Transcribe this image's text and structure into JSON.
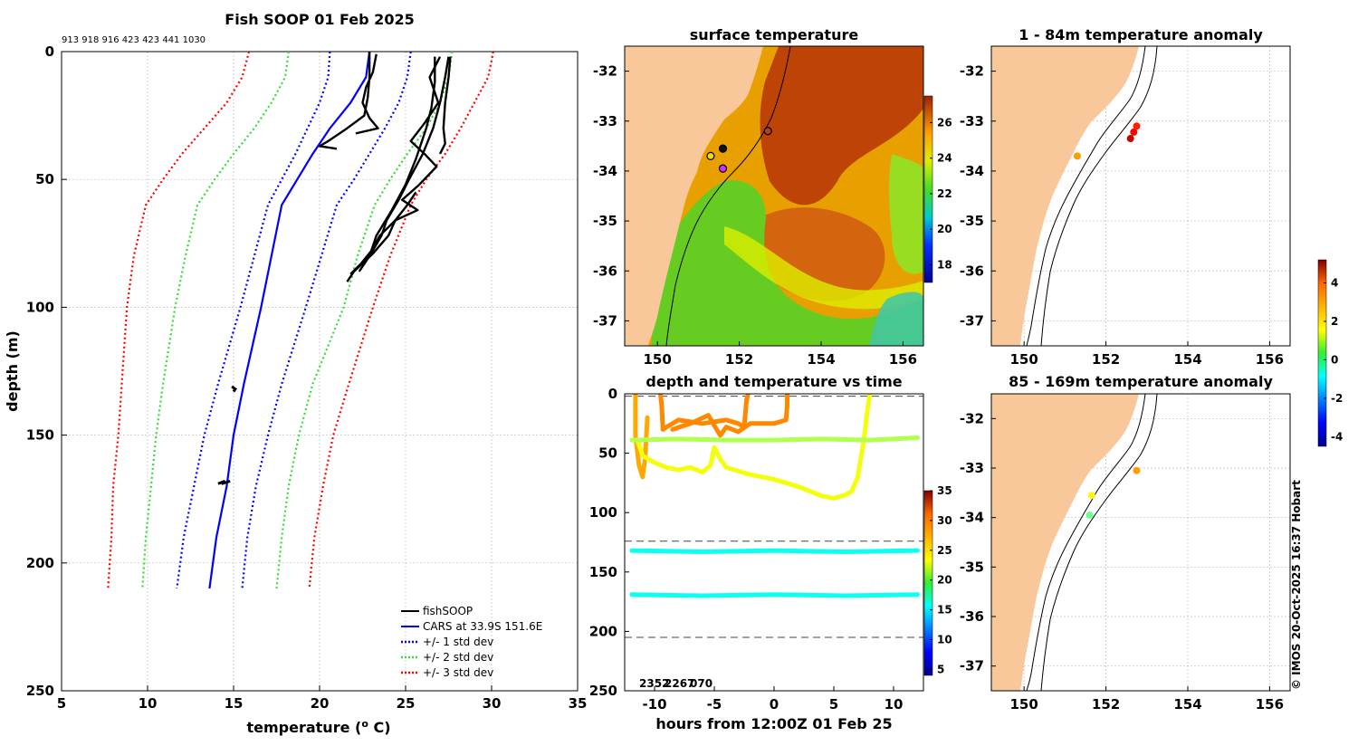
{
  "colors": {
    "land": "#f9c89a",
    "fishSOOP": "#000000",
    "cars": "#0000ff",
    "std1": "#0000ff",
    "std2": "#33dd33",
    "std3": "#ff0000",
    "grid": "#c0c0c0"
  },
  "chart_data": [
    {
      "type": "line",
      "title": "Fish SOOP 01 Feb 2025",
      "subtitle": "913 918 916 423 423 441 1030",
      "xlabel": "temperature (",
      "xlabel_sup": "o",
      "xlabel_unit": " C)",
      "ylabel": "depth (m)",
      "xlim": [
        5,
        35
      ],
      "ylim": [
        250,
        0
      ],
      "xticks": [
        "5",
        "10",
        "15",
        "20",
        "25",
        "30",
        "35"
      ],
      "yticks": [
        "0",
        "50",
        "100",
        "150",
        "200",
        "250"
      ],
      "legend": [
        "fishSOOP",
        "CARS at 33.9S 151.6E",
        "+/- 1 std dev",
        "+/- 2 std dev",
        "+/- 3 std dev"
      ],
      "legend_position": "bottom-right",
      "depth": [
        0,
        10,
        20,
        30,
        40,
        50,
        60,
        80,
        100,
        130,
        150,
        170,
        190,
        210
      ],
      "series": [
        {
          "name": "CARS at 33.9S 151.6E",
          "values": [
            22.9,
            22.7,
            21.8,
            20.6,
            19.6,
            18.7,
            17.8,
            17.2,
            16.6,
            15.6,
            15.0,
            14.6,
            14.0,
            13.6
          ]
        },
        {
          "name": "-1 std dev",
          "values": [
            20.6,
            20.5,
            20.0,
            19.3,
            18.6,
            17.8,
            17.0,
            16.2,
            15.4,
            14.1,
            13.3,
            12.7,
            12.1,
            11.7
          ]
        },
        {
          "name": "+1 std dev",
          "values": [
            25.3,
            25.1,
            24.6,
            23.8,
            22.9,
            22.0,
            21.0,
            20.1,
            19.2,
            17.8,
            17.0,
            16.3,
            15.8,
            15.5
          ]
        },
        {
          "name": "-2 std dev",
          "values": [
            18.2,
            18.0,
            17.2,
            16.2,
            15.0,
            13.9,
            12.9,
            12.2,
            11.6,
            10.9,
            10.5,
            10.2,
            9.9,
            9.7
          ]
        },
        {
          "name": "+2 std dev",
          "values": [
            27.7,
            27.5,
            27.0,
            26.2,
            25.1,
            24.1,
            23.2,
            22.2,
            21.4,
            19.6,
            18.8,
            18.2,
            17.8,
            17.5
          ]
        },
        {
          "name": "-3 std dev",
          "values": [
            15.9,
            15.5,
            14.6,
            13.3,
            12.0,
            10.9,
            9.9,
            9.2,
            8.8,
            8.5,
            8.3,
            8.0,
            7.9,
            7.7
          ]
        },
        {
          "name": "+3 std dev",
          "values": [
            30.1,
            29.8,
            29.0,
            28.2,
            27.3,
            26.2,
            25.3,
            24.1,
            23.1,
            21.7,
            20.8,
            20.2,
            19.7,
            19.4
          ]
        }
      ],
      "fishSOOP_profiles": [
        {
          "temp": [
            22.9,
            22.9,
            22.9,
            22.8,
            22.6,
            21.6,
            20.5,
            20.0,
            21.0
          ],
          "depth": [
            0,
            5,
            10,
            18,
            25,
            30,
            35,
            37,
            38
          ]
        },
        {
          "temp": [
            23.3,
            23.1,
            22.7,
            22.5,
            22.9,
            23.4,
            22.1
          ],
          "depth": [
            1,
            8,
            14,
            20,
            26,
            30,
            32
          ]
        },
        {
          "temp": [
            27.0,
            26.4,
            26.9,
            26.1,
            25.3,
            26.1,
            26.8,
            25.8,
            24.8,
            25.7,
            24.4,
            23.5,
            23.0,
            22.4,
            21.8
          ],
          "depth": [
            2,
            10,
            20,
            28,
            35,
            40,
            45,
            52,
            58,
            62,
            66,
            72,
            78,
            83,
            87
          ]
        },
        {
          "temp": [
            26.7,
            26.7,
            26.5,
            26.2,
            25.6,
            25.0,
            24.2,
            23.3,
            22.9
          ],
          "depth": [
            2,
            12,
            22,
            30,
            42,
            52,
            62,
            72,
            80
          ]
        },
        {
          "temp": [
            27.5,
            27.3,
            27.0,
            26.6,
            26.0,
            25.2,
            24.6,
            23.9,
            23.6,
            22.9,
            22.3
          ],
          "depth": [
            2,
            10,
            20,
            30,
            40,
            50,
            58,
            66,
            72,
            80,
            86
          ]
        },
        {
          "temp": [
            27.6,
            27.5,
            27.3,
            27.2,
            27.3,
            27.0
          ],
          "depth": [
            2,
            10,
            20,
            30,
            36,
            40
          ]
        },
        {
          "temp": [
            25.6,
            25.1,
            24.4,
            24.0,
            23.1,
            22.0,
            21.6
          ],
          "depth": [
            55,
            60,
            66,
            72,
            79,
            86,
            90
          ]
        }
      ],
      "fishSOOP_blips": [
        {
          "temp": [
            14.9,
            15.1,
            15.0
          ],
          "depth": [
            131,
            132,
            133
          ]
        },
        {
          "temp": [
            14.1,
            14.5,
            14.3,
            14.8
          ],
          "depth": [
            169,
            168,
            169,
            168
          ]
        }
      ]
    },
    {
      "type": "heatmap",
      "title": "surface temperature",
      "xticks": [
        "150",
        "152",
        "154",
        "156"
      ],
      "yticks": [
        "-32",
        "-33",
        "-34",
        "-35",
        "-36",
        "-37"
      ],
      "xlim": [
        149.2,
        156.5
      ],
      "ylim": [
        -37.5,
        -31.5
      ],
      "colorbar_ticks": [
        "26",
        "24",
        "22",
        "20",
        "18"
      ],
      "colorbar_range": [
        17,
        27.5
      ],
      "markers": [
        {
          "lon": 151.3,
          "lat": -33.7,
          "color": "#f0dc00"
        },
        {
          "lon": 151.6,
          "lat": -33.55,
          "color": "#111111"
        },
        {
          "lon": 151.6,
          "lat": -33.95,
          "color": "#cc33ff"
        },
        {
          "lon": 152.7,
          "lat": -33.2,
          "color": "#b04020"
        }
      ]
    },
    {
      "type": "scatter",
      "title": "depth and temperature vs time",
      "xlabel": "hours from 12:00Z 01 Feb 25",
      "xlim": [
        -12.5,
        12.5
      ],
      "ylim": [
        250,
        0
      ],
      "xticks": [
        "-10",
        "-5",
        "0",
        "5",
        "10"
      ],
      "yticks": [
        "0",
        "50",
        "100",
        "150",
        "200",
        "250"
      ],
      "colorbar_ticks": [
        "35",
        "30",
        "25",
        "20",
        "15",
        "10",
        "5"
      ],
      "colorbar_range": [
        4,
        35
      ],
      "dashed_depths": [
        2,
        124,
        205
      ],
      "bottom_labels": [
        "2352",
        "2267",
        "070"
      ],
      "tracks": [
        {
          "temp": 26,
          "hours": [
            -11.6,
            -11.6,
            -11.3,
            -11,
            -10.8,
            -10.6
          ],
          "depth": [
            1,
            35,
            60,
            70,
            55,
            20
          ]
        },
        {
          "temp": 27,
          "hours": [
            -9.5,
            -9.4,
            -9.3,
            -9.0,
            -8,
            -6,
            -4,
            -3,
            -2.5,
            -2.3,
            -2.2
          ],
          "depth": [
            1,
            10,
            30,
            28,
            22,
            25,
            22,
            25,
            28,
            5,
            1
          ]
        },
        {
          "temp": 27,
          "hours": [
            -8.5,
            -7,
            -5.5,
            -4.8,
            -4.5,
            -4,
            -3,
            -2,
            0,
            1,
            1.1,
            1.1
          ],
          "depth": [
            30,
            25,
            18,
            30,
            35,
            28,
            32,
            25,
            25,
            22,
            10,
            1
          ]
        },
        {
          "temp": 23,
          "hours": [
            -11.4,
            -11,
            -10,
            -9,
            -8,
            -7,
            -6,
            -5.3,
            -5,
            -4.5,
            -4,
            -2,
            0,
            2,
            3,
            4,
            5,
            6,
            6.5,
            7,
            7.5,
            7.8,
            8,
            8
          ],
          "depth": [
            40,
            52,
            58,
            62,
            64,
            62,
            66,
            60,
            45,
            55,
            62,
            68,
            72,
            78,
            82,
            86,
            88,
            85,
            82,
            70,
            40,
            15,
            1,
            1
          ]
        },
        {
          "temp": 21,
          "hours": [
            -11.9,
            -8,
            -4,
            0,
            4,
            8,
            12
          ],
          "depth": [
            39,
            38,
            39,
            39,
            38,
            39,
            37
          ]
        },
        {
          "temp": 16,
          "hours": [
            -11.9,
            -6,
            0,
            6,
            12
          ],
          "depth": [
            132,
            133,
            132,
            133,
            132
          ]
        },
        {
          "temp": 16,
          "hours": [
            -11.9,
            -6,
            0,
            6,
            12
          ],
          "depth": [
            169,
            170,
            169,
            170,
            169
          ]
        }
      ]
    },
    {
      "type": "scatter",
      "title": "1 - 84m temperature anomaly",
      "xticks": [
        "150",
        "152",
        "154",
        "156"
      ],
      "yticks": [
        "-32",
        "-33",
        "-34",
        "-35",
        "-36",
        "-37"
      ],
      "xlim": [
        149.2,
        156.5
      ],
      "ylim": [
        -37.5,
        -31.5
      ],
      "points": [
        {
          "lon": 151.3,
          "lat": -33.7,
          "anomaly": 2.5
        },
        {
          "lon": 152.6,
          "lat": -33.35,
          "anomaly": 4.5
        },
        {
          "lon": 152.68,
          "lat": -33.22,
          "anomaly": 4.0
        },
        {
          "lon": 152.75,
          "lat": -33.1,
          "anomaly": 3.7
        }
      ]
    },
    {
      "type": "scatter",
      "title": "85 - 169m temperature anomaly",
      "xticks": [
        "150",
        "152",
        "154",
        "156"
      ],
      "yticks": [
        "-32",
        "-33",
        "-34",
        "-35",
        "-36",
        "-37"
      ],
      "xlim": [
        149.2,
        156.5
      ],
      "ylim": [
        -37.5,
        -31.5
      ],
      "points": [
        {
          "lon": 152.75,
          "lat": -33.05,
          "anomaly": 2.5
        },
        {
          "lon": 151.65,
          "lat": -33.55,
          "anomaly": 1.6
        },
        {
          "lon": 151.6,
          "lat": -33.95,
          "anomaly": 0.2
        }
      ]
    }
  ],
  "anomaly_colorbar": {
    "ticks": [
      "4",
      "2",
      "0",
      "-2",
      "-4"
    ],
    "range": [
      -4.5,
      5.2
    ]
  },
  "footer": {
    "credit": "© IMOS 20-Oct-2025 16:37 Hobart"
  }
}
